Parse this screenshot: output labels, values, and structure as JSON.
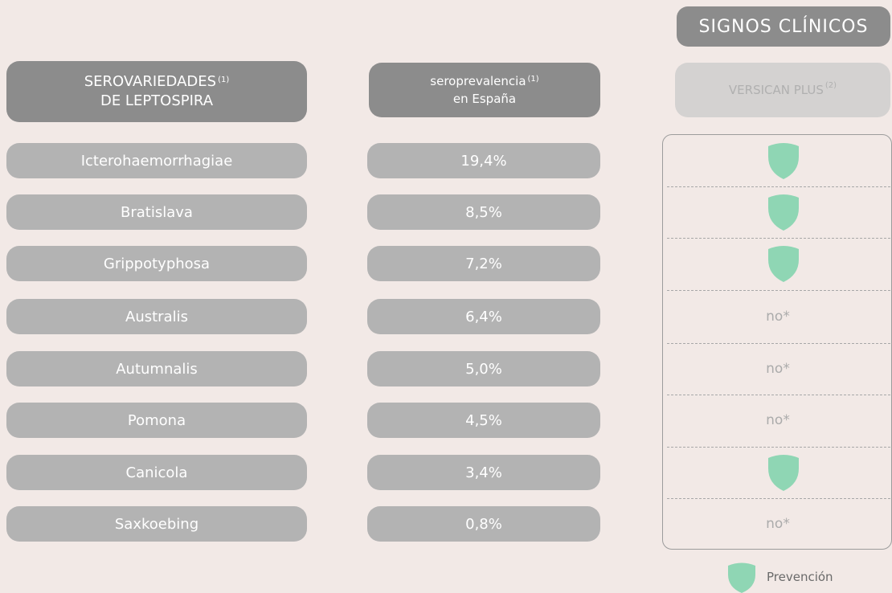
{
  "header": {
    "badge": "SIGNOS CLÍNICOS",
    "col1": {
      "line1": "SEROVARIEDADES",
      "sup": "(1)",
      "line2": "DE LEPTOSPIRA"
    },
    "col2": {
      "line1": "seroprevalencia",
      "sup": "(1)",
      "line2": "en España"
    },
    "col3": {
      "line1": "VERSICAN PLUS",
      "sup": "(2)"
    }
  },
  "table": {
    "rows": [
      {
        "serovar": "Icterohaemorrhagiae",
        "seroprevalence": "19,4%",
        "versican": true
      },
      {
        "serovar": "Bratislava",
        "seroprevalence": "8,5%",
        "versican": true
      },
      {
        "serovar": "Grippotyphosa",
        "seroprevalence": "7,2%",
        "versican": true
      },
      {
        "serovar": "Australis",
        "seroprevalence": "6,4%",
        "versican": "no*"
      },
      {
        "serovar": "Autumnalis",
        "seroprevalence": "5,0%",
        "versican": "no*"
      },
      {
        "serovar": "Pomona",
        "seroprevalence": "4,5%",
        "versican": "no*"
      },
      {
        "serovar": "Canicola",
        "seroprevalence": "3,4%",
        "versican": true
      },
      {
        "serovar": "Saxkoebing",
        "seroprevalence": "0,8%",
        "versican": "no*"
      }
    ]
  },
  "legend": {
    "label": "Prevención"
  }
}
